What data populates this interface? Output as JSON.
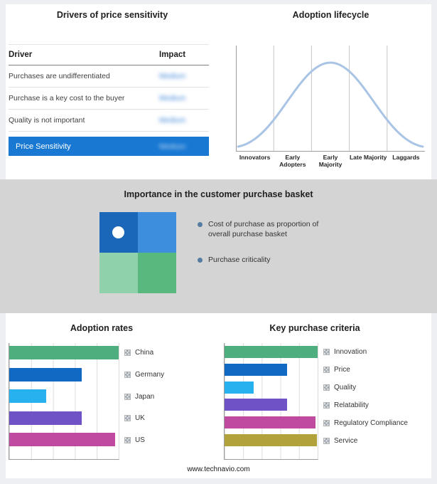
{
  "page": {
    "footer": "www.technavio.com"
  },
  "drivers_table": {
    "title": "Drivers of price sensitivity",
    "columns": [
      "Driver",
      "Impact"
    ],
    "rows": [
      {
        "driver": "Purchases are undifferentiated",
        "impact": "Medium"
      },
      {
        "driver": "Purchase is a key cost to the buyer",
        "impact": "Medium"
      },
      {
        "driver": "Quality is not important",
        "impact": "Medium"
      }
    ],
    "summary": {
      "label": "Price Sensitivity",
      "impact": "Medium"
    },
    "accent_color": "#1878d2"
  },
  "purchase_basket": {
    "title": "Importance in the customer purchase basket",
    "legend": [
      "Cost of purchase as proportion of overall purchase basket",
      "Purchase criticality"
    ],
    "quadrant_colors": {
      "top_left": "#1a66b8",
      "top_right": "#3d8fdd",
      "bottom_left": "#8ed1aa",
      "bottom_right": "#58b87e"
    },
    "bullet_color": "#557ca3"
  },
  "chart_data": [
    {
      "type": "bar",
      "title": "Adoption rates",
      "orientation": "horizontal",
      "categories": [
        "China",
        "Germany",
        "Japan",
        "UK",
        "US"
      ],
      "values": [
        100,
        66,
        34,
        66,
        97
      ],
      "colors": [
        "#4fae7d",
        "#1169c4",
        "#27b2ef",
        "#6f52c5",
        "#bf4a9f"
      ],
      "xlim": [
        0,
        100
      ],
      "grid": true,
      "legend_position": "right"
    },
    {
      "type": "bar",
      "title": "Key purchase criteria",
      "orientation": "horizontal",
      "categories": [
        "Innovation",
        "Price",
        "Quality",
        "Relatability",
        "Regulatory Compliance",
        "Service"
      ],
      "values": [
        100,
        67,
        31,
        67,
        98,
        99
      ],
      "colors": [
        "#4fae7d",
        "#1169c4",
        "#27b2ef",
        "#6f52c5",
        "#bf4a9f",
        "#b2a23c"
      ],
      "xlim": [
        0,
        100
      ],
      "grid": true,
      "legend_position": "right"
    },
    {
      "type": "line",
      "title": "Adoption lifecycle",
      "categories": [
        "Innovators",
        "Early Adopters",
        "Early Majority",
        "Late Majority",
        "Laggards"
      ],
      "values": [
        8,
        55,
        100,
        55,
        8
      ],
      "curve": "bell",
      "color": "#a9c4e4",
      "grid": true
    }
  ]
}
